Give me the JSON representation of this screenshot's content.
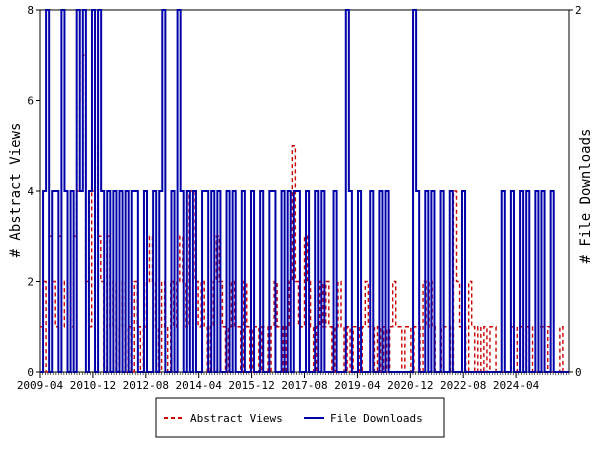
{
  "chart_data": {
    "type": "line",
    "ylabel_left": "# Abstract Views",
    "ylabel_right": "# File Downloads",
    "ylim_left": [
      0,
      8
    ],
    "ylim_right": [
      0,
      2
    ],
    "xlim": [
      "2009-04",
      "2025-12"
    ],
    "x_tick_labels": [
      "2009-04",
      "2010-12",
      "2012-08",
      "2014-04",
      "2015-12",
      "2017-08",
      "2019-04",
      "2020-12",
      "2022-08",
      "2024-04"
    ],
    "y_left_ticks": [
      "0",
      "2",
      "4",
      "6",
      "8"
    ],
    "y_right_ticks": [
      "0",
      "2"
    ],
    "grid": false,
    "legend_position": "bottom",
    "series": [
      {
        "name": "Abstract Views",
        "axis": "left",
        "color": "#cc0000",
        "style": "dashed",
        "values": [
          1,
          2,
          0,
          3,
          2,
          1,
          3,
          1,
          2,
          0,
          1,
          3,
          4,
          6,
          7,
          2,
          1,
          4,
          5,
          3,
          2,
          0,
          3,
          1,
          2,
          0,
          1,
          2,
          0,
          1,
          0,
          2,
          1,
          0,
          1,
          2,
          3,
          2,
          1,
          0,
          2,
          1,
          0,
          2,
          1,
          2,
          3,
          2,
          1,
          4,
          4,
          2,
          1,
          2,
          1,
          0,
          1,
          2,
          3,
          2,
          1,
          0,
          1,
          2,
          1,
          1,
          0,
          2,
          1,
          0,
          1,
          1,
          0,
          1,
          1,
          0,
          1,
          2,
          1,
          1,
          0,
          1,
          2,
          5,
          2,
          1,
          1,
          3,
          2,
          1,
          0,
          1,
          2,
          1,
          2,
          1,
          0,
          1,
          2,
          1,
          0,
          1,
          0,
          1,
          1,
          0,
          1,
          2,
          1,
          1,
          0,
          1,
          0,
          1,
          0,
          1,
          2,
          1,
          1,
          0,
          1,
          1,
          0,
          1,
          1,
          0,
          2,
          1,
          2,
          1,
          0,
          0,
          1,
          1,
          1,
          0,
          4,
          2,
          1,
          1,
          0,
          2,
          1,
          0,
          1,
          0,
          1,
          0,
          1,
          1,
          0,
          0,
          0,
          0,
          0,
          1,
          1,
          0,
          1,
          0,
          1,
          1,
          0,
          0,
          1,
          1,
          0,
          1,
          0,
          0,
          0,
          1,
          0,
          0
        ]
      },
      {
        "name": "File Downloads",
        "axis": "right",
        "color": "#0000aa",
        "style": "solid",
        "values": [
          0,
          1,
          2,
          0,
          1,
          1,
          0,
          2,
          1,
          0,
          1,
          0,
          2,
          1,
          2,
          0,
          1,
          2,
          0,
          2,
          1,
          0,
          1,
          0,
          1,
          0,
          1,
          0,
          1,
          0,
          1,
          1,
          0,
          0,
          1,
          0,
          0,
          1,
          0,
          1,
          2,
          0,
          0,
          1,
          0,
          2,
          1,
          0,
          1,
          0,
          1,
          0,
          0,
          1,
          1,
          0,
          1,
          0,
          1,
          0,
          0,
          1,
          0,
          1,
          0,
          0,
          1,
          0,
          0,
          1,
          0,
          0,
          1,
          0,
          0,
          1,
          1,
          0,
          0,
          1,
          0,
          1,
          0,
          1,
          1,
          0,
          0,
          1,
          0,
          0,
          1,
          0,
          1,
          0,
          0,
          0,
          1,
          0,
          0,
          0,
          2,
          1,
          0,
          0,
          1,
          0,
          0,
          0,
          1,
          0,
          0,
          1,
          0,
          1,
          0,
          0,
          0,
          0,
          0,
          0,
          0,
          0,
          2,
          1,
          0,
          0,
          1,
          0,
          1,
          0,
          0,
          1,
          0,
          0,
          1,
          0,
          0,
          0,
          1,
          0,
          0,
          0,
          0,
          0,
          0,
          0,
          0,
          0,
          0,
          0,
          0,
          1,
          0,
          0,
          1,
          0,
          0,
          1,
          0,
          1,
          0,
          0,
          1,
          0,
          1,
          0,
          0,
          1,
          0,
          0,
          0,
          0,
          0
        ]
      }
    ]
  }
}
